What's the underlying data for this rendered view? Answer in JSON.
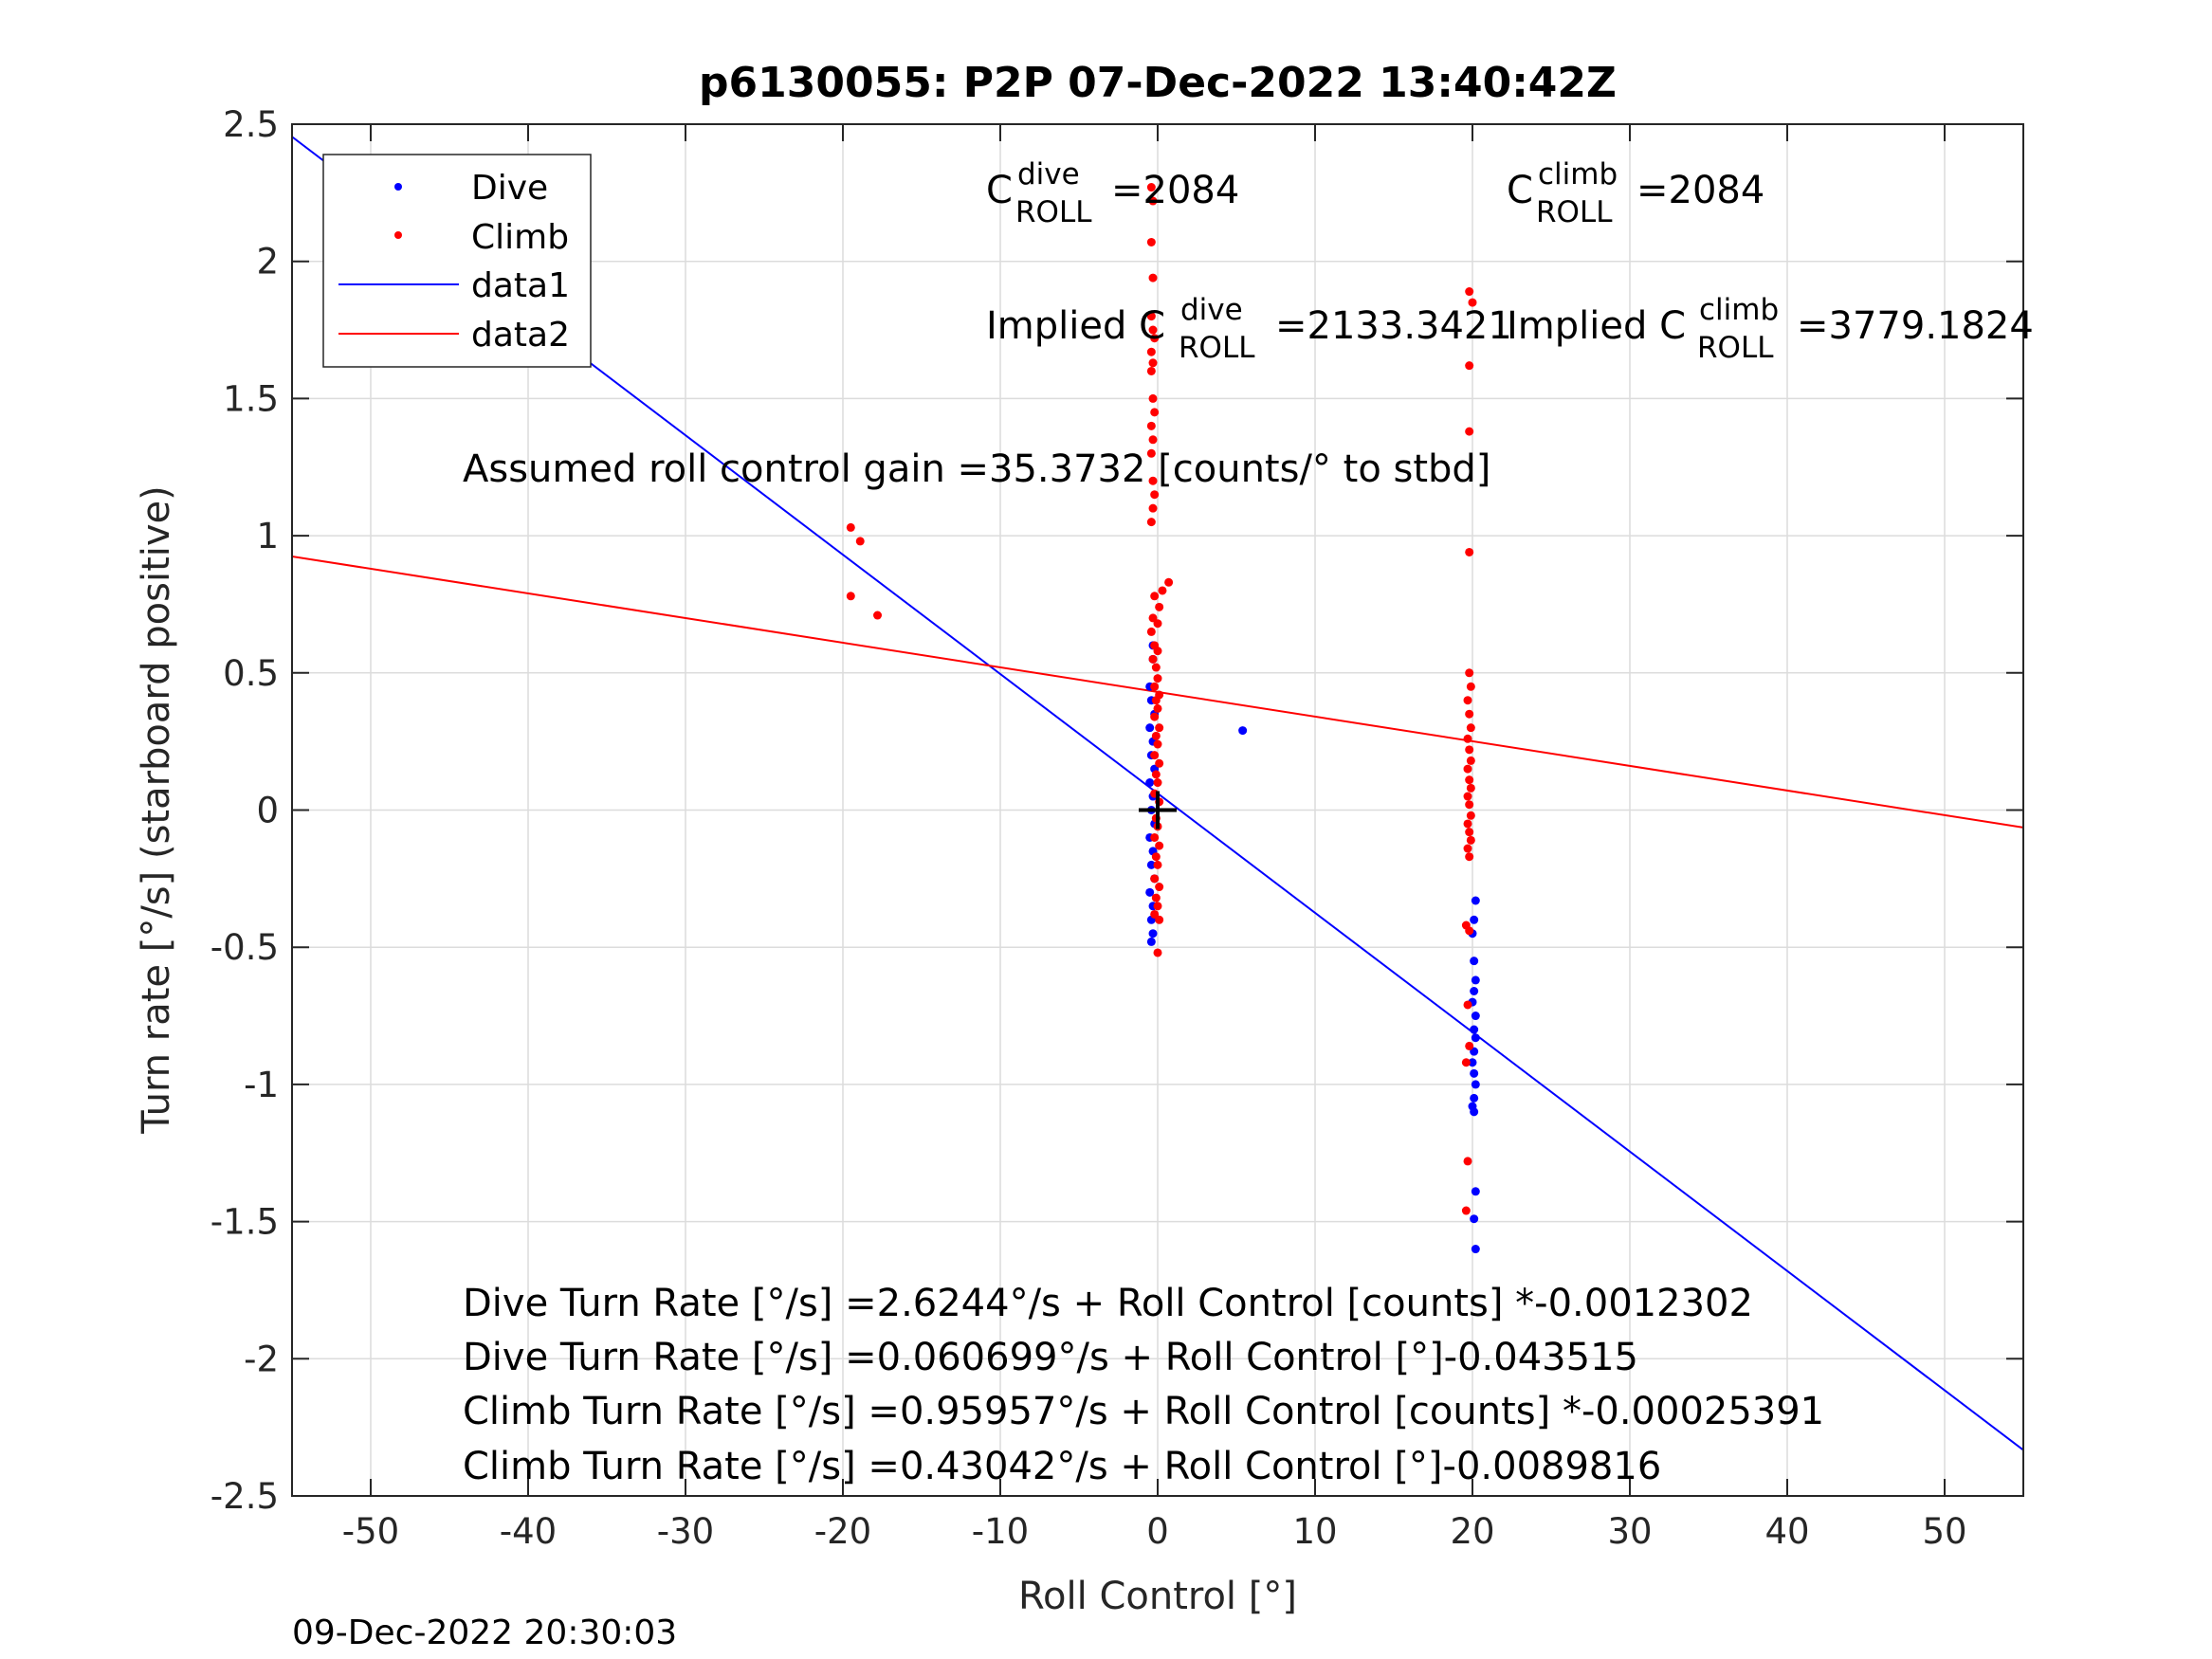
{
  "chart_data": {
    "type": "scatter",
    "title": "p6130055: P2P 07-Dec-2022 13:40:42Z",
    "xlabel": "Roll Control [°]",
    "ylabel": "Turn rate [°/s] (starboard positive)",
    "xlim": [
      -55,
      55
    ],
    "ylim": [
      -2.5,
      2.5
    ],
    "xticks": [
      -50,
      -40,
      -30,
      -20,
      -10,
      0,
      10,
      20,
      30,
      40,
      50
    ],
    "yticks": [
      -2.5,
      -2,
      -1.5,
      -1,
      -0.5,
      0,
      0.5,
      1,
      1.5,
      2,
      2.5
    ],
    "grid": true,
    "legend_position": "top-left",
    "legend": [
      {
        "label": "Dive",
        "kind": "marker",
        "color": "#0000ff"
      },
      {
        "label": "Climb",
        "kind": "marker",
        "color": "#ff0000"
      },
      {
        "label": "data1",
        "kind": "line",
        "color": "#0000ff"
      },
      {
        "label": "data2",
        "kind": "line",
        "color": "#ff0000"
      }
    ],
    "lines": [
      {
        "name": "data1",
        "color": "#0000ff",
        "intercept": 0.060699,
        "slope": -0.043515
      },
      {
        "name": "data2",
        "color": "#ff0000",
        "intercept": 0.43042,
        "slope": -0.0089816
      }
    ],
    "series": [
      {
        "name": "Dive",
        "color": "#0000ff",
        "points": [
          [
            -0.3,
            0.6
          ],
          [
            -0.3,
            0.55
          ],
          [
            -0.5,
            0.45
          ],
          [
            -0.4,
            0.4
          ],
          [
            -0.2,
            0.35
          ],
          [
            -0.5,
            0.3
          ],
          [
            -0.3,
            0.25
          ],
          [
            -0.4,
            0.2
          ],
          [
            -0.2,
            0.15
          ],
          [
            -0.5,
            0.1
          ],
          [
            -0.3,
            0.05
          ],
          [
            -0.4,
            0.0
          ],
          [
            -0.2,
            -0.05
          ],
          [
            -0.5,
            -0.1
          ],
          [
            -0.3,
            -0.15
          ],
          [
            -0.4,
            -0.2
          ],
          [
            -0.2,
            -0.25
          ],
          [
            -0.5,
            -0.3
          ],
          [
            -0.3,
            -0.35
          ],
          [
            -0.4,
            -0.4
          ],
          [
            -0.3,
            -0.45
          ],
          [
            -0.4,
            -0.48
          ],
          [
            5.4,
            0.29
          ],
          [
            20.2,
            -0.33
          ],
          [
            20.1,
            -0.4
          ],
          [
            20.0,
            -0.45
          ],
          [
            20.1,
            -0.55
          ],
          [
            20.2,
            -0.62
          ],
          [
            20.1,
            -0.66
          ],
          [
            20.0,
            -0.7
          ],
          [
            20.2,
            -0.75
          ],
          [
            20.1,
            -0.8
          ],
          [
            20.2,
            -0.83
          ],
          [
            20.1,
            -0.88
          ],
          [
            20.0,
            -0.92
          ],
          [
            20.1,
            -0.96
          ],
          [
            20.2,
            -1.0
          ],
          [
            20.1,
            -1.05
          ],
          [
            20.0,
            -1.08
          ],
          [
            20.1,
            -1.1
          ],
          [
            20.2,
            -1.39
          ],
          [
            20.1,
            -1.49
          ],
          [
            20.2,
            -1.6
          ]
        ]
      },
      {
        "name": "Climb",
        "color": "#ff0000",
        "points": [
          [
            -19.5,
            1.03
          ],
          [
            -18.9,
            0.98
          ],
          [
            -19.5,
            0.78
          ],
          [
            -17.8,
            0.71
          ],
          [
            -0.4,
            2.27
          ],
          [
            -0.3,
            2.22
          ],
          [
            -0.4,
            2.07
          ],
          [
            -0.3,
            1.94
          ],
          [
            -0.4,
            1.8
          ],
          [
            -0.3,
            1.75
          ],
          [
            -0.2,
            1.72
          ],
          [
            -0.4,
            1.67
          ],
          [
            -0.3,
            1.63
          ],
          [
            -0.4,
            1.6
          ],
          [
            -0.3,
            1.5
          ],
          [
            -0.2,
            1.45
          ],
          [
            -0.4,
            1.4
          ],
          [
            -0.3,
            1.35
          ],
          [
            -0.4,
            1.3
          ],
          [
            -0.3,
            1.2
          ],
          [
            -0.2,
            1.15
          ],
          [
            -0.3,
            1.1
          ],
          [
            -0.4,
            1.05
          ],
          [
            0.7,
            0.83
          ],
          [
            0.3,
            0.8
          ],
          [
            -0.2,
            0.78
          ],
          [
            0.1,
            0.74
          ],
          [
            -0.3,
            0.7
          ],
          [
            0.0,
            0.68
          ],
          [
            -0.4,
            0.65
          ],
          [
            -0.2,
            0.6
          ],
          [
            0.0,
            0.58
          ],
          [
            -0.3,
            0.55
          ],
          [
            -0.1,
            0.52
          ],
          [
            0.0,
            0.48
          ],
          [
            -0.2,
            0.45
          ],
          [
            0.1,
            0.42
          ],
          [
            -0.1,
            0.4
          ],
          [
            0.0,
            0.37
          ],
          [
            -0.2,
            0.34
          ],
          [
            0.1,
            0.3
          ],
          [
            -0.1,
            0.27
          ],
          [
            0.0,
            0.24
          ],
          [
            -0.2,
            0.2
          ],
          [
            0.1,
            0.17
          ],
          [
            -0.1,
            0.13
          ],
          [
            0.0,
            0.1
          ],
          [
            -0.2,
            0.06
          ],
          [
            0.1,
            0.03
          ],
          [
            -0.1,
            -0.03
          ],
          [
            0.0,
            -0.06
          ],
          [
            -0.2,
            -0.1
          ],
          [
            0.1,
            -0.13
          ],
          [
            -0.1,
            -0.17
          ],
          [
            0.0,
            -0.2
          ],
          [
            -0.2,
            -0.25
          ],
          [
            0.1,
            -0.28
          ],
          [
            -0.1,
            -0.32
          ],
          [
            0.0,
            -0.35
          ],
          [
            -0.2,
            -0.38
          ],
          [
            0.1,
            -0.4
          ],
          [
            0.0,
            -0.52
          ],
          [
            19.8,
            1.89
          ],
          [
            20.0,
            1.85
          ],
          [
            19.8,
            1.62
          ],
          [
            19.8,
            1.38
          ],
          [
            19.8,
            0.94
          ],
          [
            19.8,
            0.5
          ],
          [
            19.9,
            0.45
          ],
          [
            19.7,
            0.4
          ],
          [
            19.8,
            0.35
          ],
          [
            19.9,
            0.3
          ],
          [
            19.7,
            0.26
          ],
          [
            19.8,
            0.22
          ],
          [
            19.9,
            0.18
          ],
          [
            19.7,
            0.15
          ],
          [
            19.8,
            0.11
          ],
          [
            19.9,
            0.08
          ],
          [
            19.7,
            0.05
          ],
          [
            19.8,
            0.02
          ],
          [
            19.9,
            -0.02
          ],
          [
            19.7,
            -0.05
          ],
          [
            19.8,
            -0.08
          ],
          [
            19.9,
            -0.11
          ],
          [
            19.7,
            -0.14
          ],
          [
            19.8,
            -0.17
          ],
          [
            19.6,
            -0.42
          ],
          [
            19.8,
            -0.44
          ],
          [
            19.7,
            -0.71
          ],
          [
            19.8,
            -0.86
          ],
          [
            19.6,
            -0.92
          ],
          [
            19.7,
            -1.28
          ],
          [
            19.6,
            -1.46
          ]
        ]
      }
    ],
    "marker": {
      "x": 0,
      "y": 0,
      "symbol": "plus",
      "color": "#000000"
    },
    "annotations": {
      "cdive_prefix": "C",
      "cdive_sup": "dive",
      "cdive_sub": "ROLL",
      "cdive_value": "=2084",
      "cclimb_prefix": "C",
      "cclimb_sup": "climb",
      "cclimb_sub": "ROLL",
      "cclimb_value": "=2084",
      "implied_dive_prefix": "Implied C",
      "implied_dive_sup": "dive",
      "implied_dive_sub": "ROLL",
      "implied_dive_value": "=2133.3421",
      "implied_climb_prefix": "Implied C",
      "implied_climb_sup": "climb",
      "implied_climb_sub": "ROLL",
      "implied_climb_value": "=3779.1824",
      "gain": "Assumed roll control gain =35.3732 [counts/° to stbd]",
      "eq1": "Dive Turn Rate [°/s] =2.6244°/s + Roll Control [counts] *-0.0012302",
      "eq2": "Dive Turn Rate [°/s] =0.060699°/s + Roll Control [°]-0.043515",
      "eq3": "Climb Turn Rate [°/s] =0.95957°/s + Roll Control [counts] *-0.00025391",
      "eq4": "Climb Turn Rate [°/s] =0.43042°/s + Roll Control [°]-0.0089816"
    },
    "footer_timestamp": "09-Dec-2022 20:30:03"
  }
}
